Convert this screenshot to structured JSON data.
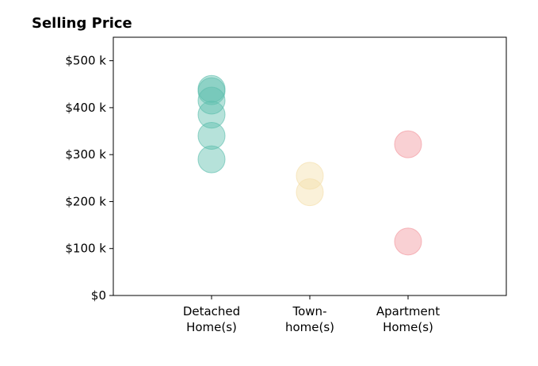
{
  "chart_data": {
    "type": "scatter",
    "title": "Selling Price",
    "xlabel": "",
    "ylabel": "",
    "ylim": [
      0,
      550000
    ],
    "xlim": [
      -1,
      3
    ],
    "grid": false,
    "categories": [
      {
        "lines": [
          "Detached",
          "Home(s)"
        ]
      },
      {
        "lines": [
          "Town-",
          "home(s)"
        ]
      },
      {
        "lines": [
          "Apartment",
          "Home(s)"
        ]
      }
    ],
    "yticks": [
      {
        "value": 0,
        "label": "$0"
      },
      {
        "value": 100000,
        "label": "$100 k"
      },
      {
        "value": 200000,
        "label": "$200 k"
      },
      {
        "value": 300000,
        "label": "$300 k"
      },
      {
        "value": 400000,
        "label": "$400 k"
      },
      {
        "value": 500000,
        "label": "$500 k"
      }
    ],
    "series": [
      {
        "category_index": 0,
        "color": "#5dbfae",
        "values": [
          440000,
          435000,
          415000,
          385000,
          340000,
          290000
        ]
      },
      {
        "category_index": 1,
        "color": "#f5dfab",
        "values": [
          255000,
          220000
        ]
      },
      {
        "category_index": 2,
        "color": "#f2969e",
        "values": [
          322000,
          115000
        ]
      }
    ],
    "marker_opacity": 0.45
  }
}
